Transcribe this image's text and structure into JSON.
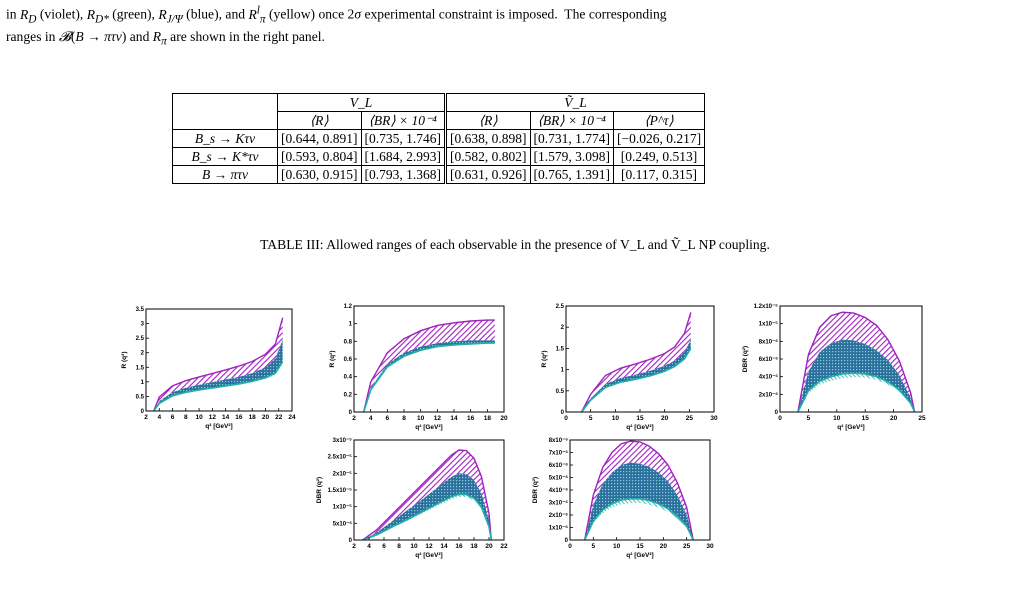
{
  "top_caption": {
    "line1": "in R_D (violet), R_D* (green), R_J/Ψ (blue), and R_π^l (yellow) once 2σ experimental constraint is imposed.  The corresponding",
    "line2": "ranges in B(B → πτν) and R_π are shown in the right panel."
  },
  "table": {
    "group_headers": [
      "V_L",
      "Ṽ_L"
    ],
    "sub_headers": [
      "⟨R⟩",
      "⟨BR⟩ × 10⁻⁴",
      "⟨R⟩",
      "⟨BR⟩ × 10⁻⁴",
      "⟨P^τ⟩"
    ],
    "rows": [
      {
        "process": "B_s → Kτν",
        "cells": [
          "[0.644, 0.891]",
          "[0.735, 1.746]",
          "[0.638, 0.898]",
          "[0.731, 1.774]",
          "[−0.026, 0.217]"
        ]
      },
      {
        "process": "B_s → K*τν",
        "cells": [
          "[0.593, 0.804]",
          "[1.684, 2.993]",
          "[0.582, 0.802]",
          "[1.579, 3.098]",
          "[0.249, 0.513]"
        ]
      },
      {
        "process": "B → πτν",
        "cells": [
          "[0.630, 0.915]",
          "[0.793, 1.368]",
          "[0.631, 0.926]",
          "[0.765, 1.391]",
          "[0.117, 0.315]"
        ]
      }
    ],
    "caption": "TABLE III: Allowed ranges of each observable in the presence of V_L and Ṽ_L NP coupling."
  },
  "colors": {
    "violet": "#a020c0",
    "blue": "#2f6f9f",
    "cyan": "#20b0a8"
  },
  "chart_data": [
    {
      "type": "area",
      "id": "p1",
      "ylabel": "R (q²)",
      "xlabel": "q² [GeV²]",
      "xlim": [
        2,
        24
      ],
      "ylim": [
        0,
        3.5
      ],
      "xticks": [
        2,
        4,
        6,
        8,
        10,
        12,
        14,
        16,
        18,
        20,
        22,
        24
      ],
      "xtick_labels": [
        "2",
        "4",
        "6",
        "8",
        "10",
        "12",
        "14",
        "16",
        "18",
        "20",
        "22",
        "24"
      ],
      "yticks": [
        0,
        0.5,
        1,
        1.5,
        2,
        2.5,
        3,
        3.5
      ],
      "ytick_labels": [
        "0",
        "0.5",
        "1",
        "1.5",
        "2",
        "2.5",
        "3",
        "3.5"
      ],
      "x": [
        3.16,
        4,
        6,
        8,
        10,
        12,
        14,
        16,
        18,
        20,
        21.5,
        22.6
      ],
      "upper": [
        0,
        0.48,
        0.86,
        1.04,
        1.17,
        1.29,
        1.41,
        1.54,
        1.7,
        1.95,
        2.3,
        3.2
      ],
      "middle": [
        0,
        0.34,
        0.64,
        0.8,
        0.9,
        0.99,
        1.08,
        1.17,
        1.3,
        1.5,
        1.8,
        2.45
      ],
      "lower": [
        0,
        0.26,
        0.52,
        0.64,
        0.72,
        0.79,
        0.86,
        0.93,
        1.02,
        1.14,
        1.3,
        1.7
      ]
    },
    {
      "type": "area",
      "id": "p2",
      "ylabel": "R (q²)",
      "xlabel": "q² [GeV²]",
      "xlim": [
        2,
        20
      ],
      "ylim": [
        0,
        1.2
      ],
      "xticks": [
        2,
        4,
        6,
        8,
        10,
        12,
        14,
        16,
        18,
        20
      ],
      "xtick_labels": [
        "2",
        "4",
        "6",
        "8",
        "10",
        "12",
        "14",
        "16",
        "18",
        "20"
      ],
      "yticks": [
        0,
        0.2,
        0.4,
        0.6,
        0.8,
        1,
        1.2
      ],
      "ytick_labels": [
        "0",
        "0.2",
        "0.4",
        "0.6",
        "0.8",
        "1",
        "1.2"
      ],
      "x": [
        3.16,
        4,
        6,
        8,
        10,
        12,
        14,
        16,
        18,
        18.9
      ],
      "upper": [
        0,
        0.34,
        0.67,
        0.83,
        0.92,
        0.98,
        1.01,
        1.03,
        1.04,
        1.04
      ],
      "middle": [
        0,
        0.27,
        0.54,
        0.67,
        0.74,
        0.78,
        0.8,
        0.81,
        0.81,
        0.81
      ],
      "lower": [
        0,
        0.25,
        0.51,
        0.63,
        0.7,
        0.74,
        0.76,
        0.77,
        0.78,
        0.78
      ]
    },
    {
      "type": "area",
      "id": "p3",
      "ylabel": "R (q²)",
      "xlabel": "q² [GeV²]",
      "xlim": [
        0,
        30
      ],
      "ylim": [
        0,
        2.5
      ],
      "xticks": [
        0,
        5,
        10,
        15,
        20,
        25,
        30
      ],
      "xtick_labels": [
        "0",
        "5",
        "10",
        "15",
        "20",
        "25",
        "30"
      ],
      "yticks": [
        0,
        0.5,
        1,
        1.5,
        2,
        2.5
      ],
      "ytick_labels": [
        "0",
        "0.5",
        "1",
        "1.5",
        "2",
        "2.5"
      ],
      "x": [
        3.16,
        5,
        8,
        11,
        14,
        17,
        20,
        22,
        24,
        25.3
      ],
      "upper": [
        0,
        0.42,
        0.86,
        1.03,
        1.13,
        1.24,
        1.38,
        1.53,
        1.85,
        2.35
      ],
      "middle": [
        0,
        0.32,
        0.66,
        0.8,
        0.88,
        0.97,
        1.09,
        1.21,
        1.42,
        1.7
      ],
      "lower": [
        0,
        0.28,
        0.58,
        0.7,
        0.77,
        0.85,
        0.96,
        1.07,
        1.25,
        1.5
      ]
    },
    {
      "type": "area",
      "id": "p4",
      "ylabel": "DBR (q²)",
      "xlabel": "q² [GeV²]",
      "xlim": [
        0,
        25
      ],
      "ylim": [
        0,
        1.2e-05
      ],
      "xticks": [
        0,
        5,
        10,
        15,
        20,
        25
      ],
      "xtick_labels": [
        "0",
        "5",
        "10",
        "15",
        "20",
        "25"
      ],
      "yticks": [
        0,
        2e-06,
        4e-06,
        6e-06,
        8e-06,
        1e-05,
        1.2e-05
      ],
      "ytick_labels": [
        "0",
        "2x10⁻⁶",
        "4x10⁻⁶",
        "6x10⁻⁶",
        "8x10⁻⁶",
        "1x10⁻⁵",
        "1.2x10⁻⁵"
      ],
      "x": [
        3.16,
        5,
        7,
        9,
        11,
        13,
        15,
        17,
        19,
        21,
        23,
        23.7
      ],
      "upper": [
        0,
        6.5e-06,
        9.6e-06,
        1.09e-05,
        1.13e-05,
        1.12e-05,
        1.07e-05,
        9.8e-06,
        8.2e-06,
        5.8e-06,
        2.2e-06,
        0
      ],
      "middle": [
        0,
        4.6e-06,
        6.8e-06,
        7.8e-06,
        8.2e-06,
        8.1e-06,
        7.7e-06,
        7e-06,
        5.9e-06,
        4.2e-06,
        1.6e-06,
        0
      ],
      "lower": [
        0,
        2.4e-06,
        3.5e-06,
        4e-06,
        4.3e-06,
        4.4e-06,
        4.3e-06,
        4e-06,
        3.4e-06,
        2.5e-06,
        1e-06,
        0
      ]
    },
    {
      "type": "area",
      "id": "p5",
      "ylabel": "DBR (q²)",
      "xlabel": "q² [GeV²]",
      "xlim": [
        2,
        22
      ],
      "ylim": [
        0,
        3e-05
      ],
      "xticks": [
        2,
        4,
        6,
        8,
        10,
        12,
        14,
        16,
        18,
        20,
        22
      ],
      "xtick_labels": [
        "2",
        "4",
        "6",
        "8",
        "10",
        "12",
        "14",
        "16",
        "18",
        "20",
        "22"
      ],
      "yticks": [
        0,
        5e-06,
        1e-05,
        1.5e-05,
        2e-05,
        2.5e-05,
        3e-05
      ],
      "ytick_labels": [
        "0",
        "5x10⁻⁶",
        "1x10⁻⁵",
        "1.5x10⁻⁵",
        "2x10⁻⁵",
        "2.5x10⁻⁵",
        "3x10⁻⁵"
      ],
      "x": [
        3.16,
        5,
        7,
        9,
        11,
        13,
        15,
        16,
        17,
        18,
        19,
        20,
        20.3
      ],
      "upper": [
        0,
        3e-06,
        7.5e-06,
        1.2e-05,
        1.65e-05,
        2.1e-05,
        2.55e-05,
        2.7e-05,
        2.68e-05,
        2.45e-05,
        1.9e-05,
        8e-06,
        0
      ],
      "middle": [
        0,
        2.2e-06,
        5.5e-06,
        8.8e-06,
        1.2e-05,
        1.55e-05,
        1.9e-05,
        2e-05,
        1.98e-05,
        1.8e-05,
        1.4e-05,
        6e-06,
        0
      ],
      "lower": [
        0,
        1.5e-06,
        3.8e-06,
        6e-06,
        8.3e-06,
        1.07e-05,
        1.3e-05,
        1.37e-05,
        1.36e-05,
        1.25e-05,
        9.8e-06,
        4e-06,
        0
      ]
    },
    {
      "type": "area",
      "id": "p6",
      "ylabel": "DBR (q²)",
      "xlabel": "q² [GeV²]",
      "xlim": [
        0,
        30
      ],
      "ylim": [
        0,
        8e-06
      ],
      "xticks": [
        0,
        5,
        10,
        15,
        20,
        25,
        30
      ],
      "xtick_labels": [
        "0",
        "5",
        "10",
        "15",
        "20",
        "25",
        "30"
      ],
      "yticks": [
        0,
        1e-06,
        2e-06,
        3e-06,
        4e-06,
        5e-06,
        6e-06,
        7e-06,
        8e-06
      ],
      "ytick_labels": [
        "0",
        "1x10⁻⁶",
        "2x10⁻⁶",
        "3x10⁻⁶",
        "4x10⁻⁶",
        "5x10⁻⁶",
        "6x10⁻⁶",
        "7x10⁻⁶",
        "8x10⁻⁶"
      ],
      "x": [
        3.16,
        5,
        7,
        9,
        11,
        13,
        15,
        17,
        19,
        21,
        23,
        25,
        26.4
      ],
      "upper": [
        0,
        3.6e-06,
        5.8e-06,
        7e-06,
        7.7e-06,
        7.9e-06,
        7.85e-06,
        7.5e-06,
        6.9e-06,
        6e-06,
        4.6e-06,
        2.6e-06,
        0
      ],
      "middle": [
        0,
        2.8e-06,
        4.5e-06,
        5.4e-06,
        6e-06,
        6.2e-06,
        6.1e-06,
        5.85e-06,
        5.4e-06,
        4.7e-06,
        3.6e-06,
        2e-06,
        0
      ],
      "lower": [
        0,
        1.5e-06,
        2.4e-06,
        2.9e-06,
        3.2e-06,
        3.3e-06,
        3.3e-06,
        3.15e-06,
        2.9e-06,
        2.5e-06,
        1.9e-06,
        1.1e-06,
        0
      ]
    }
  ]
}
